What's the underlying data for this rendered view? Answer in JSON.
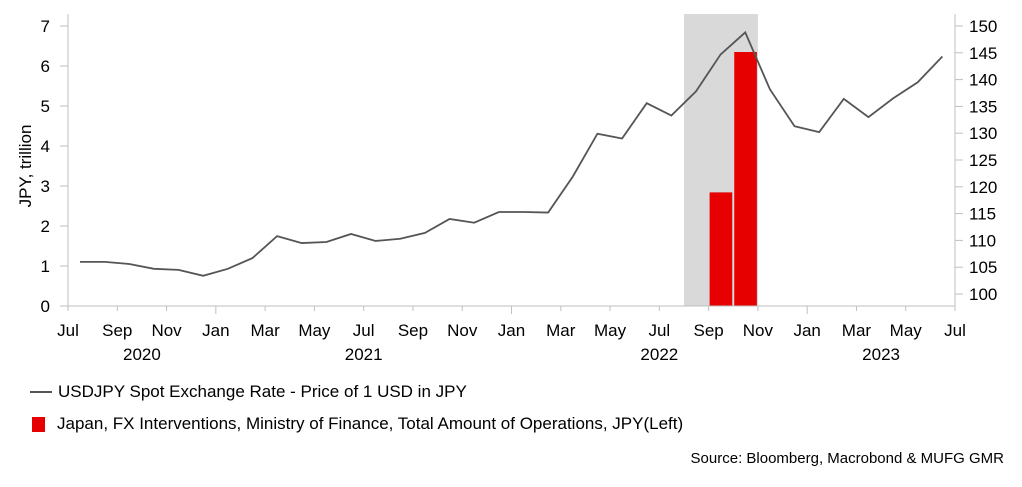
{
  "chart_data": {
    "type": "bar+line",
    "title": "",
    "left_axis": {
      "label": "JPY, trillion",
      "range": [
        0,
        7
      ],
      "ticks": [
        0,
        1,
        2,
        3,
        4,
        5,
        6,
        7
      ]
    },
    "right_axis": {
      "label": "",
      "range": [
        98,
        152
      ],
      "ticks": [
        100,
        105,
        110,
        115,
        120,
        125,
        130,
        135,
        140,
        145,
        150
      ]
    },
    "x_axis": {
      "month_ticks": [
        {
          "label": "Jul",
          "date": "2020-07"
        },
        {
          "label": "Sep",
          "date": "2020-09"
        },
        {
          "label": "Nov",
          "date": "2020-11"
        },
        {
          "label": "Jan",
          "date": "2021-01"
        },
        {
          "label": "Mar",
          "date": "2021-03"
        },
        {
          "label": "May",
          "date": "2021-05"
        },
        {
          "label": "Jul",
          "date": "2021-07"
        },
        {
          "label": "Sep",
          "date": "2021-09"
        },
        {
          "label": "Nov",
          "date": "2021-11"
        },
        {
          "label": "Jan",
          "date": "2022-01"
        },
        {
          "label": "Mar",
          "date": "2022-03"
        },
        {
          "label": "May",
          "date": "2022-05"
        },
        {
          "label": "Jul",
          "date": "2022-07"
        },
        {
          "label": "Sep",
          "date": "2022-09"
        },
        {
          "label": "Nov",
          "date": "2022-11"
        },
        {
          "label": "Jan",
          "date": "2023-01"
        },
        {
          "label": "Mar",
          "date": "2023-03"
        },
        {
          "label": "May",
          "date": "2023-05"
        },
        {
          "label": "Jul",
          "date": "2023-07"
        }
      ],
      "year_labels": [
        {
          "label": "2020",
          "center": "2020-10"
        },
        {
          "label": "2021",
          "center": "2021-07"
        },
        {
          "label": "2022",
          "center": "2022-07"
        },
        {
          "label": "2023",
          "center": "2023-04"
        }
      ],
      "start": "2020-07",
      "end": "2023-07"
    },
    "shaded_region": {
      "from": "2022-08",
      "to": "2022-11",
      "color": "#d9d9d9"
    },
    "series": [
      {
        "name": "USDJPY Spot Exchange Rate - Price of 1 USD in JPY",
        "type": "line",
        "axis": "right",
        "color": "#555555",
        "x": [
          "2020-07",
          "2020-08",
          "2020-09",
          "2020-10",
          "2020-11",
          "2020-12",
          "2021-01",
          "2021-02",
          "2021-03",
          "2021-04",
          "2021-05",
          "2021-06",
          "2021-07",
          "2021-08",
          "2021-09",
          "2021-10",
          "2021-11",
          "2021-12",
          "2022-01",
          "2022-02",
          "2022-03",
          "2022-04",
          "2022-05",
          "2022-06",
          "2022-07",
          "2022-08",
          "2022-09",
          "2022-10",
          "2022-11",
          "2022-12",
          "2023-01",
          "2023-02",
          "2023-03",
          "2023-04",
          "2023-05",
          "2023-06"
        ],
        "values": [
          106.0,
          106.0,
          105.6,
          104.7,
          104.5,
          103.4,
          104.7,
          106.7,
          110.8,
          109.5,
          109.7,
          111.2,
          109.9,
          110.3,
          111.4,
          114.0,
          113.3,
          115.3,
          115.3,
          115.2,
          121.9,
          129.9,
          129.0,
          135.6,
          133.3,
          137.8,
          144.7,
          148.8,
          138.2,
          131.3,
          130.2,
          136.4,
          133.0,
          136.5,
          139.5,
          144.3
        ]
      },
      {
        "name": "Japan, FX Interventions, Ministry of Finance, Total Amount of Operations, JPY(Left)",
        "type": "bar",
        "axis": "left",
        "color": "#e60000",
        "x": [
          "2022-09",
          "2022-10"
        ],
        "values": [
          2.84,
          6.35
        ]
      }
    ],
    "legend": {
      "placement": "bottom-left",
      "entries": [
        "USDJPY Spot Exchange Rate - Price of 1 USD in JPY",
        "Japan, FX Interventions, Ministry of Finance, Total Amount of Operations, JPY(Left)"
      ]
    },
    "source": "Source: Bloomberg, Macrobond & MUFG GMR",
    "grid": false
  }
}
